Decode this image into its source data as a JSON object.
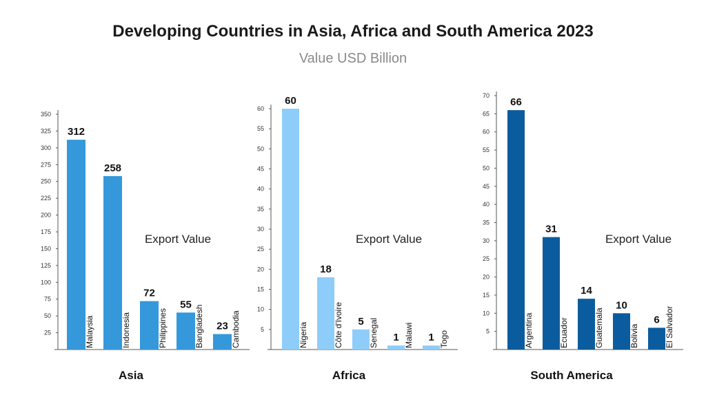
{
  "header": {
    "title": "Developing Countries in Asia, Africa and South America 2023",
    "subtitle": "Value USD Billion"
  },
  "chart_data": [
    {
      "type": "bar",
      "region": "Asia",
      "annotation": "Export Value",
      "color": "#3498db",
      "categories": [
        "Malaysia",
        "Indonesia",
        "Philippines",
        "Bangladesh",
        "Cambodia"
      ],
      "values": [
        312,
        258,
        72,
        55,
        23
      ],
      "ylim": [
        0,
        350
      ],
      "yticks": [
        25,
        50,
        75,
        100,
        125,
        150,
        175,
        200,
        225,
        250,
        275,
        300,
        325,
        350
      ]
    },
    {
      "type": "bar",
      "region": "Africa",
      "annotation": "Export Value",
      "color": "#8ecdf9",
      "categories": [
        "Nigeria",
        "Côte d'Ivoire",
        "Senegal",
        "Malawi",
        "Togo"
      ],
      "values": [
        60,
        18,
        5,
        1,
        1
      ],
      "ylim": [
        0,
        60
      ],
      "yticks": [
        5,
        10,
        15,
        20,
        25,
        30,
        35,
        40,
        45,
        50,
        55,
        60
      ]
    },
    {
      "type": "bar",
      "region": "South America",
      "annotation": "Export Value",
      "color": "#0b5c9e",
      "categories": [
        "Argentina",
        "Ecuador",
        "Guatemala",
        "Bolivia",
        "El Salvador"
      ],
      "values": [
        66,
        31,
        14,
        10,
        6
      ],
      "ylim": [
        0,
        70
      ],
      "yticks": [
        5,
        10,
        15,
        20,
        25,
        30,
        35,
        40,
        45,
        50,
        55,
        60,
        65,
        70
      ]
    }
  ]
}
